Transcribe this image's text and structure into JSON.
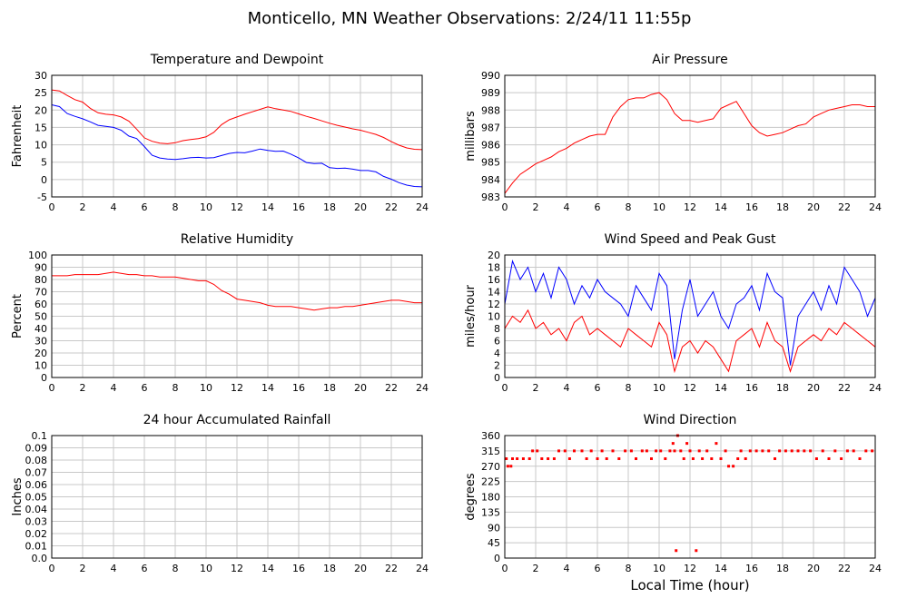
{
  "header": {
    "title": "Monticello, MN Weather Observations: 2/24/11 11:55p"
  },
  "footer": {
    "xlabel": "Local Time (hour)"
  },
  "chart_data": [
    {
      "id": "temp",
      "type": "line",
      "title": "Temperature and Dewpoint",
      "ylabel": "Fahrenheit",
      "xlim": [
        0,
        24
      ],
      "ylim": [
        -5,
        30
      ],
      "xticks": [
        0,
        2,
        4,
        6,
        8,
        10,
        12,
        14,
        16,
        18,
        20,
        22,
        24
      ],
      "yticks": [
        -5,
        0,
        5,
        10,
        15,
        20,
        25,
        30
      ],
      "grid": true,
      "series": [
        {
          "color": "#ff0000",
          "x": [
            0,
            0.5,
            1,
            1.5,
            2,
            2.5,
            3,
            3.5,
            4,
            4.5,
            5,
            5.5,
            6,
            6.5,
            7,
            7.5,
            8,
            8.5,
            9,
            9.5,
            10,
            10.5,
            11,
            11.5,
            12,
            12.5,
            13,
            13.5,
            14,
            14.5,
            15,
            15.5,
            16,
            16.5,
            17,
            17.5,
            18,
            18.5,
            19,
            19.5,
            20,
            20.5,
            21,
            21.5,
            22,
            22.5,
            23,
            23.5,
            24
          ],
          "y": [
            25.8,
            25.5,
            24.2,
            23,
            22.3,
            20.5,
            19.2,
            18.8,
            18.6,
            18,
            16.8,
            14.5,
            12,
            11,
            10.5,
            10.3,
            10.6,
            11.2,
            11.5,
            11.8,
            12.3,
            13.6,
            15.8,
            17.2,
            18,
            18.8,
            19.5,
            20.2,
            20.9,
            20.4,
            20,
            19.6,
            18.9,
            18.2,
            17.6,
            16.9,
            16.2,
            15.6,
            15.1,
            14.6,
            14.2,
            13.6,
            13,
            12.1,
            10.9,
            9.9,
            9.1,
            8.7,
            8.6
          ]
        },
        {
          "color": "#0000ff",
          "x": [
            0,
            0.5,
            1,
            1.5,
            2,
            2.5,
            3,
            3.5,
            4,
            4.5,
            5,
            5.5,
            6,
            6.5,
            7,
            7.5,
            8,
            8.5,
            9,
            9.5,
            10,
            10.5,
            11,
            11.5,
            12,
            12.5,
            13,
            13.5,
            14,
            14.5,
            15,
            15.5,
            16,
            16.5,
            17,
            17.5,
            18,
            18.5,
            19,
            19.5,
            20,
            20.5,
            21,
            21.5,
            22,
            22.5,
            23,
            23.5,
            24
          ],
          "y": [
            21.5,
            21,
            19,
            18.2,
            17.5,
            16.6,
            15.6,
            15.3,
            15,
            14.2,
            12.5,
            11.8,
            9.5,
            7,
            6.2,
            5.9,
            5.8,
            6,
            6.3,
            6.4,
            6.2,
            6.3,
            6.9,
            7.5,
            7.8,
            7.7,
            8.2,
            8.8,
            8.4,
            8.1,
            8.2,
            7.3,
            6.2,
            4.9,
            4.6,
            4.7,
            3.4,
            3.2,
            3.3,
            3,
            2.6,
            2.6,
            2.2,
            0.9,
            0.1,
            -0.9,
            -1.6,
            -2,
            -2.1
          ]
        }
      ]
    },
    {
      "id": "press",
      "type": "line",
      "title": "Air Pressure",
      "ylabel": "millibars",
      "xlim": [
        0,
        24
      ],
      "ylim": [
        983,
        990
      ],
      "xticks": [
        0,
        2,
        4,
        6,
        8,
        10,
        12,
        14,
        16,
        18,
        20,
        22,
        24
      ],
      "yticks": [
        983,
        984,
        985,
        986,
        987,
        988,
        989,
        990
      ],
      "grid": true,
      "series": [
        {
          "color": "#ff0000",
          "x": [
            0,
            0.5,
            1,
            1.5,
            2,
            2.5,
            3,
            3.5,
            4,
            4.5,
            5,
            5.5,
            6,
            6.5,
            7,
            7.5,
            8,
            8.5,
            9,
            9.5,
            10,
            10.5,
            11,
            11.5,
            12,
            12.5,
            13,
            13.5,
            14,
            14.5,
            15,
            15.5,
            16,
            16.5,
            17,
            17.5,
            18,
            18.5,
            19,
            19.5,
            20,
            20.5,
            21,
            21.5,
            22,
            22.5,
            23,
            23.5,
            24
          ],
          "y": [
            983.2,
            983.8,
            984.3,
            984.6,
            984.9,
            985.1,
            985.3,
            985.6,
            985.8,
            986.1,
            986.3,
            986.5,
            986.6,
            986.6,
            987.6,
            988.2,
            988.6,
            988.7,
            988.7,
            988.9,
            989,
            988.6,
            987.8,
            987.4,
            987.4,
            987.3,
            987.4,
            987.5,
            988.1,
            988.3,
            988.5,
            987.8,
            987.1,
            986.7,
            986.5,
            986.6,
            986.7,
            986.9,
            987.1,
            987.2,
            987.6,
            987.8,
            988,
            988.1,
            988.2,
            988.3,
            988.3,
            988.2,
            988.2
          ]
        }
      ]
    },
    {
      "id": "rh",
      "type": "line",
      "title": "Relative Humidity",
      "ylabel": "Percent",
      "xlim": [
        0,
        24
      ],
      "ylim": [
        0,
        100
      ],
      "xticks": [
        0,
        2,
        4,
        6,
        8,
        10,
        12,
        14,
        16,
        18,
        20,
        22,
        24
      ],
      "yticks": [
        0,
        10,
        20,
        30,
        40,
        50,
        60,
        70,
        80,
        90,
        100
      ],
      "grid": true,
      "series": [
        {
          "color": "#ff0000",
          "x": [
            0,
            0.5,
            1,
            1.5,
            2,
            2.5,
            3,
            3.5,
            4,
            4.5,
            5,
            5.5,
            6,
            6.5,
            7,
            7.5,
            8,
            8.5,
            9,
            9.5,
            10,
            10.5,
            11,
            11.5,
            12,
            12.5,
            13,
            13.5,
            14,
            14.5,
            15,
            15.5,
            16,
            16.5,
            17,
            17.5,
            18,
            18.5,
            19,
            19.5,
            20,
            20.5,
            21,
            21.5,
            22,
            22.5,
            23,
            23.5,
            24
          ],
          "y": [
            83,
            83,
            83,
            84,
            84,
            84,
            84,
            85,
            86,
            85,
            84,
            84,
            83,
            83,
            82,
            82,
            82,
            81,
            80,
            79,
            79,
            76,
            71,
            68,
            64,
            63,
            62,
            61,
            59,
            58,
            58,
            58,
            57,
            56,
            55,
            56,
            57,
            57,
            58,
            58,
            59,
            60,
            61,
            62,
            63,
            63,
            62,
            61,
            61
          ]
        }
      ]
    },
    {
      "id": "wind",
      "type": "line",
      "title": "Wind Speed and Peak Gust",
      "ylabel": "miles/hour",
      "xlim": [
        0,
        24
      ],
      "ylim": [
        0,
        20
      ],
      "xticks": [
        0,
        2,
        4,
        6,
        8,
        10,
        12,
        14,
        16,
        18,
        20,
        22,
        24
      ],
      "yticks": [
        0,
        2,
        4,
        6,
        8,
        10,
        12,
        14,
        16,
        18,
        20
      ],
      "grid": true,
      "series": [
        {
          "color": "#0000ff",
          "x": [
            0,
            0.5,
            1,
            1.5,
            2,
            2.5,
            3,
            3.5,
            4,
            4.5,
            5,
            5.5,
            6,
            6.5,
            7,
            7.5,
            8,
            8.5,
            9,
            9.5,
            10,
            10.5,
            11,
            11.5,
            12,
            12.5,
            13,
            13.5,
            14,
            14.5,
            15,
            15.5,
            16,
            16.5,
            17,
            17.5,
            18,
            18.5,
            19,
            19.5,
            20,
            20.5,
            21,
            21.5,
            22,
            22.5,
            23,
            23.5,
            24
          ],
          "y": [
            12,
            19,
            16,
            18,
            14,
            17,
            13,
            18,
            16,
            12,
            15,
            13,
            16,
            14,
            13,
            12,
            10,
            15,
            13,
            11,
            17,
            15,
            3,
            11,
            16,
            10,
            12,
            14,
            10,
            8,
            12,
            13,
            15,
            11,
            17,
            14,
            13,
            2,
            10,
            12,
            14,
            11,
            15,
            12,
            18,
            16,
            14,
            10,
            13
          ]
        },
        {
          "color": "#ff0000",
          "x": [
            0,
            0.5,
            1,
            1.5,
            2,
            2.5,
            3,
            3.5,
            4,
            4.5,
            5,
            5.5,
            6,
            6.5,
            7,
            7.5,
            8,
            8.5,
            9,
            9.5,
            10,
            10.5,
            11,
            11.5,
            12,
            12.5,
            13,
            13.5,
            14,
            14.5,
            15,
            15.5,
            16,
            16.5,
            17,
            17.5,
            18,
            18.5,
            19,
            19.5,
            20,
            20.5,
            21,
            21.5,
            22,
            22.5,
            23,
            23.5,
            24
          ],
          "y": [
            8,
            10,
            9,
            11,
            8,
            9,
            7,
            8,
            6,
            9,
            10,
            7,
            8,
            7,
            6,
            5,
            8,
            7,
            6,
            5,
            9,
            7,
            1,
            5,
            6,
            4,
            6,
            5,
            3,
            1,
            6,
            7,
            8,
            5,
            9,
            6,
            5,
            1,
            5,
            6,
            7,
            6,
            8,
            7,
            9,
            8,
            7,
            6,
            5
          ]
        }
      ]
    },
    {
      "id": "rain",
      "type": "line",
      "title": "24 hour Accumulated Rainfall",
      "ylabel": "Inches",
      "xlim": [
        0,
        24
      ],
      "ylim": [
        0,
        0.1
      ],
      "xticks": [
        0,
        2,
        4,
        6,
        8,
        10,
        12,
        14,
        16,
        18,
        20,
        22,
        24
      ],
      "yticks": [
        0.0,
        0.01,
        0.02,
        0.03,
        0.04,
        0.05,
        0.06,
        0.07,
        0.08,
        0.09,
        0.1
      ],
      "ytick_labels": [
        "0.0",
        "0.01",
        "0.02",
        "0.03",
        "0.04",
        "0.05",
        "0.06",
        "0.07",
        "0.08",
        "0.09",
        "0.1"
      ],
      "grid": true,
      "series": [
        {
          "color": "#ff0000",
          "x": [
            0,
            24
          ],
          "y": [
            0,
            0
          ]
        }
      ]
    },
    {
      "id": "dir",
      "type": "scatter",
      "title": "Wind Direction",
      "ylabel": "degrees",
      "xlim": [
        0,
        24
      ],
      "ylim": [
        0,
        360
      ],
      "xticks": [
        0,
        2,
        4,
        6,
        8,
        10,
        12,
        14,
        16,
        18,
        20,
        22,
        24
      ],
      "yticks": [
        0,
        45,
        90,
        135,
        180,
        225,
        270,
        315,
        360
      ],
      "grid": true,
      "series": [
        {
          "color": "#ff0000",
          "points": [
            [
              0.1,
              292
            ],
            [
              0.2,
              270
            ],
            [
              0.4,
              270
            ],
            [
              0.5,
              292
            ],
            [
              0.8,
              292
            ],
            [
              1.2,
              292
            ],
            [
              1.6,
              292
            ],
            [
              1.8,
              315
            ],
            [
              2.1,
              315
            ],
            [
              2.4,
              292
            ],
            [
              2.8,
              292
            ],
            [
              3.2,
              292
            ],
            [
              3.5,
              315
            ],
            [
              3.9,
              315
            ],
            [
              4.2,
              292
            ],
            [
              4.5,
              315
            ],
            [
              5.0,
              315
            ],
            [
              5.3,
              292
            ],
            [
              5.6,
              315
            ],
            [
              6.0,
              292
            ],
            [
              6.3,
              315
            ],
            [
              6.6,
              292
            ],
            [
              7.0,
              315
            ],
            [
              7.4,
              292
            ],
            [
              7.8,
              315
            ],
            [
              8.2,
              315
            ],
            [
              8.5,
              292
            ],
            [
              8.9,
              315
            ],
            [
              9.2,
              315
            ],
            [
              9.5,
              292
            ],
            [
              9.8,
              315
            ],
            [
              10.1,
              315
            ],
            [
              10.4,
              292
            ],
            [
              10.7,
              315
            ],
            [
              10.9,
              337
            ],
            [
              11.0,
              315
            ],
            [
              11.1,
              22
            ],
            [
              11.2,
              360
            ],
            [
              11.4,
              315
            ],
            [
              11.6,
              292
            ],
            [
              11.8,
              337
            ],
            [
              12.0,
              315
            ],
            [
              12.2,
              292
            ],
            [
              12.4,
              22
            ],
            [
              12.6,
              315
            ],
            [
              12.8,
              292
            ],
            [
              13.1,
              315
            ],
            [
              13.4,
              292
            ],
            [
              13.7,
              337
            ],
            [
              14.0,
              292
            ],
            [
              14.3,
              315
            ],
            [
              14.5,
              270
            ],
            [
              14.8,
              270
            ],
            [
              15.1,
              292
            ],
            [
              15.3,
              315
            ],
            [
              15.6,
              292
            ],
            [
              15.9,
              315
            ],
            [
              16.3,
              315
            ],
            [
              16.7,
              315
            ],
            [
              17.1,
              315
            ],
            [
              17.5,
              292
            ],
            [
              17.8,
              315
            ],
            [
              18.2,
              315
            ],
            [
              18.6,
              315
            ],
            [
              19.0,
              315
            ],
            [
              19.4,
              315
            ],
            [
              19.8,
              315
            ],
            [
              20.2,
              292
            ],
            [
              20.6,
              315
            ],
            [
              21.0,
              292
            ],
            [
              21.4,
              315
            ],
            [
              21.8,
              292
            ],
            [
              22.2,
              315
            ],
            [
              22.6,
              315
            ],
            [
              23.0,
              292
            ],
            [
              23.4,
              315
            ],
            [
              23.8,
              315
            ]
          ]
        }
      ]
    }
  ]
}
